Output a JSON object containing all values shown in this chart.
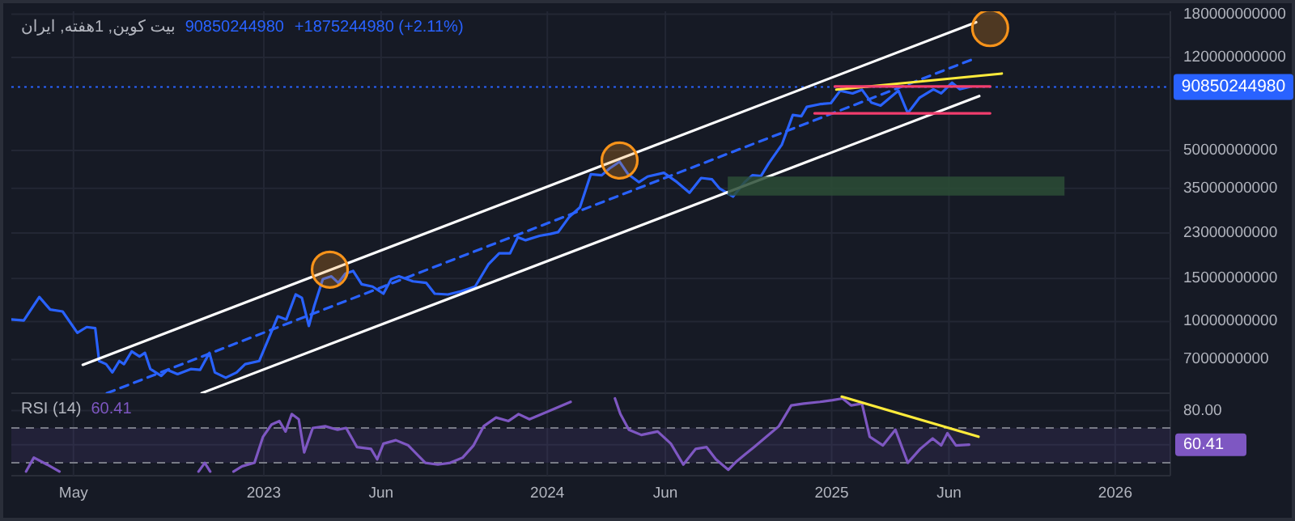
{
  "chart_data": [
    {
      "type": "line",
      "title": "بیت کوین, 1هفته, ایران",
      "subtitle": "90850244980",
      "annotations": [
        "+1875244980 (+2.11%)"
      ],
      "series": [
        {
          "color": "#2962ff",
          "x": [
            "2022-02-10",
            "2022-02-26",
            "2022-03-18",
            "2022-04-01",
            "2022-04-17",
            "2022-05-06",
            "2022-05-18",
            "2022-05-29",
            "2022-06-03",
            "2022-06-12",
            "2022-06-20",
            "2022-06-29",
            "2022-07-05",
            "2022-07-15",
            "2022-07-25",
            "2022-08-01",
            "2022-08-08",
            "2022-08-22",
            "2022-08-30",
            "2022-09-12",
            "2022-09-29",
            "2022-10-11",
            "2022-10-23",
            "2022-10-30",
            "2022-11-13",
            "2022-11-27",
            "2022-12-08",
            "2022-12-26",
            "2023-01-09",
            "2023-01-19",
            "2023-01-30",
            "2023-02-11",
            "2023-02-19",
            "2023-02-28",
            "2023-03-07",
            "2023-03-18",
            "2023-03-29",
            "2023-04-07",
            "2023-04-16",
            "2023-04-26",
            "2023-05-07",
            "2023-05-21",
            "2023-06-04",
            "2023-06-14",
            "2023-06-24",
            "2023-07-12",
            "2023-07-29",
            "2023-08-09",
            "2023-08-26",
            "2023-09-12",
            "2023-09-30",
            "2023-10-17",
            "2023-10-31",
            "2023-11-14",
            "2023-11-24",
            "2023-12-04",
            "2023-12-22",
            "2024-01-05",
            "2024-01-15",
            "2024-01-29",
            "2024-02-12",
            "2024-02-26",
            "2024-03-11",
            "2024-03-21",
            "2024-04-03",
            "2024-04-14",
            "2024-04-28",
            "2024-05-09",
            "2024-05-30",
            "2024-06-16",
            "2024-07-02",
            "2024-07-17",
            "2024-07-31",
            "2024-08-10",
            "2024-08-27",
            "2024-09-11",
            "2024-09-21",
            "2024-10-02",
            "2024-10-12",
            "2024-10-29",
            "2024-11-12",
            "2024-11-23",
            "2024-11-30",
            "2024-12-17",
            "2024-12-31",
            "2025-01-12",
            "2025-01-28",
            "2025-02-09",
            "2025-02-21",
            "2025-03-05",
            "2025-03-28",
            "2025-04-09",
            "2025-04-24",
            "2025-05-12",
            "2025-05-22",
            "2025-06-05",
            "2025-06-15",
            "2025-06-27"
          ],
          "values": [
            10200000000.0,
            10100000000.0,
            12600000000.0,
            11200000000.0,
            11000000000.0,
            9000000000.0,
            9500000000.0,
            9400000000.0,
            6900000000.0,
            6700000000.0,
            6200000000.0,
            6900000000.0,
            6700000000.0,
            7550000000.0,
            7200000000.0,
            7450000000.0,
            6400000000.0,
            6000000000.0,
            6350000000.0,
            6100000000.0,
            6400000000.0,
            6350000000.0,
            7450000000.0,
            6200000000.0,
            5900000000.0,
            6200000000.0,
            6700000000.0,
            6900000000.0,
            8800000000.0,
            10500000000.0,
            10200000000.0,
            12900000000.0,
            12500000000.0,
            9600000000.0,
            11600000000.0,
            14900000000.0,
            15300000000.0,
            14400000000.0,
            15700000000.0,
            16100000000.0,
            14200000000.0,
            13900000000.0,
            13000000000.0,
            14900000000.0,
            15300000000.0,
            14600000000.0,
            14400000000.0,
            13000000000.0,
            12900000000.0,
            13300000000.0,
            13900000000.0,
            17100000000.0,
            19000000000.0,
            19000000000.0,
            22100000000.0,
            21500000000.0,
            22400000000.0,
            22800000000.0,
            23200000000.0,
            26700000000.0,
            29300000000.0,
            40000000000.0,
            39600000000.0,
            42200000000.0,
            45000000000.0,
            40000000000.0,
            37100000000.0,
            39100000000.0,
            40500000000.0,
            37100000000.0,
            33600000000.0,
            38600000000.0,
            38100000000.0,
            34900000000.0,
            32400000000.0,
            37100000000.0,
            39600000000.0,
            39300000000.0,
            44300000000.0,
            52900000000.0,
            69800000000.0,
            69000000000.0,
            75300000000.0,
            77300000000.0,
            78000000000.0,
            87700000000.0,
            85500000000.0,
            88500000000.0,
            78500000000.0,
            76200000000.0,
            87700000000.0,
            71000000000.0,
            82000000000.0,
            88900000000.0,
            85500000000.0,
            94600000000.0,
            88900000000.0,
            90850244980
          ]
        },
        {
          "color": "#ffffff",
          "x": [
            "2022-05-13",
            "2025-07-06"
          ],
          "values": [
            6660000000.0,
            167000000000.0
          ]
        },
        {
          "color": "#ffffff",
          "x": [
            "2022-10-13",
            "2025-07-10"
          ],
          "values": [
            5100000000.0,
            83400000000.0
          ]
        },
        {
          "color": "#2962ff",
          "line_style": "dashed",
          "x": [
            "2022-06-13",
            "2025-07-05"
          ],
          "values": [
            5100000000.0,
            119000000000.0
          ]
        },
        {
          "color": "#ffeb3b",
          "x": [
            "2025-01-07",
            "2025-08-08"
          ],
          "values": [
            88600000000.0,
            103000000000.0
          ]
        },
        {
          "color": "#f23d6d",
          "x": [
            "2025-01-05",
            "2025-07-24"
          ],
          "values": [
            91300000000.0,
            91300000000.0
          ]
        },
        {
          "color": "#f23d6d",
          "x": [
            "2024-12-10",
            "2025-07-24"
          ],
          "values": [
            70900000000.0,
            70900000000.0
          ]
        },
        {
          "type": "bar",
          "color": "#2b4d36",
          "x": [
            "2025-03-25"
          ],
          "base": [
            32700000000.0
          ],
          "values": [
            6400000000.0
          ]
        },
        {
          "type": "scatter",
          "marker": "circle",
          "color": "#f7931a",
          "x": [
            "2023-03-27",
            "2024-04-03",
            "2025-07-24"
          ],
          "values": [
            16300000000.0,
            45500000000.0,
            158000000000.0
          ]
        }
      ],
      "xlim": [
        "2022-02-10",
        "2026-03-13"
      ],
      "ylim": [
        5100000000.0,
        185000000000.0
      ],
      "log": true,
      "yticks": [
        180000000000,
        120000000000,
        50000000000,
        35000000000,
        23000000000,
        15000000000,
        10000000000,
        7000000000
      ],
      "xticks": [
        {
          "value": "2022-05-01",
          "label": null
        },
        {
          "value": "2023-01-01",
          "label": null
        },
        {
          "value": "2023-06-01",
          "label": null
        },
        {
          "value": "2024-01-01",
          "label": null
        },
        {
          "value": "2024-06-01",
          "label": null
        },
        {
          "value": "2025-01-01",
          "label": null
        },
        {
          "value": "2025-06-01",
          "label": null
        },
        {
          "value": "2026-01-01",
          "label": null
        }
      ],
      "tick_labels": "y",
      "grid": true,
      "ref_lines": [
        {
          "axis": "y",
          "value": 90850244980,
          "label": "90850244980",
          "color": "#2962ff",
          "line_style": "dotted"
        }
      ]
    },
    {
      "type": "line",
      "title": "RSI (14)",
      "subtitle": "60.41",
      "series": [
        {
          "color": "#7e57c2",
          "x": [
            "2022-03-01",
            "2022-03-11",
            "2022-03-28",
            "2022-04-13",
            "2022-06-01",
            "2022-10-09",
            "2022-10-17",
            "2022-10-24",
            "2022-11-10",
            "2022-11-23",
            "2022-12-04",
            "2022-12-20",
            "2022-12-31",
            "2023-01-11",
            "2023-01-21",
            "2023-01-29",
            "2023-02-06",
            "2023-02-15",
            "2023-02-22",
            "2023-03-05",
            "2023-03-21",
            "2023-04-06",
            "2023-04-17",
            "2023-05-01",
            "2023-05-19",
            "2023-05-27",
            "2023-06-04",
            "2023-06-20",
            "2023-07-06",
            "2023-07-28",
            "2023-08-13",
            "2023-08-29",
            "2023-09-14",
            "2023-09-28",
            "2023-10-11",
            "2023-10-27",
            "2023-11-12",
            "2023-11-25",
            "2023-12-09",
            "2023-12-25",
            "2024-01-15",
            "2024-01-31",
            "2024-02-11",
            "2024-02-25",
            "2024-03-14",
            "2024-03-28",
            "2024-04-04",
            "2024-04-15",
            "2024-05-01",
            "2024-05-22",
            "2024-06-08",
            "2024-06-24",
            "2024-07-10",
            "2024-07-24",
            "2024-08-05",
            "2024-08-21",
            "2024-09-01",
            "2024-09-12",
            "2024-09-23",
            "2024-10-09",
            "2024-10-25",
            "2024-11-10",
            "2024-11-26",
            "2024-12-17",
            "2025-01-02",
            "2025-01-15",
            "2025-01-26",
            "2025-02-09",
            "2025-02-19",
            "2025-03-08",
            "2025-03-24",
            "2025-04-09",
            "2025-04-25",
            "2025-05-11",
            "2025-05-22",
            "2025-05-30",
            "2025-06-10",
            "2025-06-27"
          ],
          "values": [
            45,
            53,
            49,
            45,
            null,
            45,
            50,
            45,
            null,
            45,
            48,
            50,
            65,
            72,
            74,
            68,
            78,
            75,
            56,
            70,
            71,
            69,
            70,
            59,
            58,
            52,
            61,
            63,
            60,
            50,
            49,
            50,
            53,
            60,
            71,
            76,
            74,
            78,
            75,
            78,
            82,
            85,
            null,
            null,
            null,
            87,
            78,
            69,
            66,
            68,
            61,
            49,
            58,
            59,
            52,
            46,
            51,
            55,
            59,
            65,
            71,
            83,
            84,
            85,
            86,
            87,
            83,
            84,
            65,
            60,
            69,
            50,
            58,
            64,
            60,
            67,
            60,
            60.41
          ]
        },
        {
          "color": "#ffeb3b",
          "x": [
            "2025-01-14",
            "2025-07-09"
          ],
          "values": [
            88,
            65
          ]
        }
      ],
      "xlim": [
        "2022-02-10",
        "2026-03-13"
      ],
      "ylim": [
        42.6,
        90
      ],
      "yticks": [
        {
          "value": 80,
          "label": "80.00"
        },
        {
          "value": 60.41,
          "label": "60.41"
        }
      ],
      "xticks": [
        {
          "value": "2022-05-01",
          "label": "May"
        },
        {
          "value": "2023-01-01",
          "label": "2023"
        },
        {
          "value": "2023-06-01",
          "label": "Jun"
        },
        {
          "value": "2024-01-01",
          "label": "2024"
        },
        {
          "value": "2024-06-01",
          "label": "Jun"
        },
        {
          "value": "2025-01-01",
          "label": "2025"
        },
        {
          "value": "2025-06-01",
          "label": "Jun"
        },
        {
          "value": "2026-01-01",
          "label": "2026"
        }
      ],
      "grid": true,
      "ref_lines": [
        {
          "axis": "y",
          "value": 70,
          "color": "#787b86",
          "line_style": "dashed"
        },
        {
          "axis": "y",
          "value": 50,
          "color": "#787b86",
          "line_style": "dashed"
        }
      ],
      "bands": [
        {
          "axis": "y",
          "from": 50,
          "to": 70,
          "color": "#7e57c2"
        }
      ]
    }
  ]
}
